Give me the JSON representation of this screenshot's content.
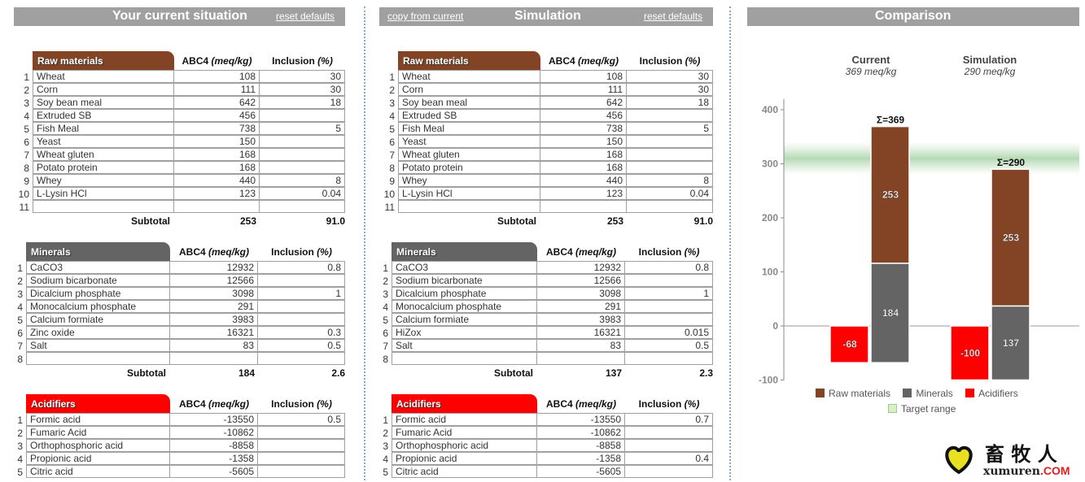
{
  "current": {
    "title": "Your current situation",
    "reset_label": "reset defaults",
    "tables": [
      {
        "key": "raw",
        "title": "Raw materials",
        "color": "#824425",
        "col_abc": "ABC4",
        "col_abc_unit": "(meq/kg)",
        "col_incl": "Inclusion",
        "col_incl_unit": "(%)",
        "rows": [
          [
            "Wheat",
            "108",
            "30"
          ],
          [
            "Corn",
            "111",
            "30"
          ],
          [
            "Soy bean meal",
            "642",
            "18"
          ],
          [
            "Extruded SB",
            "456",
            ""
          ],
          [
            "Fish Meal",
            "738",
            "5"
          ],
          [
            "Yeast",
            "150",
            ""
          ],
          [
            "Wheat gluten",
            "168",
            ""
          ],
          [
            "Potato protein",
            "168",
            ""
          ],
          [
            "Whey",
            "440",
            "8"
          ],
          [
            "L-Lysin HCl",
            "123",
            "0.04"
          ],
          [
            "",
            "",
            ""
          ]
        ],
        "subtotal_label": "Subtotal",
        "subtotal_abc": "253",
        "subtotal_incl": "91.0"
      },
      {
        "key": "minerals",
        "title": "Minerals",
        "color": "#646464",
        "col_abc": "ABC4",
        "col_abc_unit": "(meq/kg)",
        "col_incl": "Inclusion",
        "col_incl_unit": "(%)",
        "rows": [
          [
            "CaCO3",
            "12932",
            "0.8"
          ],
          [
            "Sodium bicarbonate",
            "12566",
            ""
          ],
          [
            "Dicalcium phosphate",
            "3098",
            "1"
          ],
          [
            "Monocalcium phosphate",
            "291",
            ""
          ],
          [
            "Calcium formiate",
            "3983",
            ""
          ],
          [
            "Zinc oxide",
            "16321",
            "0.3"
          ],
          [
            "Salt",
            "83",
            "0.5"
          ],
          [
            "",
            "",
            ""
          ]
        ],
        "subtotal_label": "Subtotal",
        "subtotal_abc": "184",
        "subtotal_incl": "2.6"
      },
      {
        "key": "acidifiers",
        "title": "Acidifiers",
        "color": "#ff0000",
        "col_abc": "ABC4",
        "col_abc_unit": "(meq/kg)",
        "col_incl": "Inclusion",
        "col_incl_unit": "(%)",
        "rows": [
          [
            "Formic acid",
            "-13550",
            "0.5"
          ],
          [
            "Fumaric Acid",
            "-10862",
            ""
          ],
          [
            "Orthophosphoric acid",
            "-8858",
            ""
          ],
          [
            "Propionic acid",
            "-1358",
            ""
          ],
          [
            "Citric acid",
            "-5605",
            ""
          ]
        ]
      }
    ]
  },
  "simulation": {
    "title": "Simulation",
    "copy_label": "copy from current",
    "reset_label": "reset defaults",
    "tables": [
      {
        "key": "raw",
        "title": "Raw materials",
        "color": "#824425",
        "col_abc": "ABC4",
        "col_abc_unit": "(meq/kg)",
        "col_incl": "Inclusion",
        "col_incl_unit": "(%)",
        "rows": [
          [
            "Wheat",
            "108",
            "30"
          ],
          [
            "Corn",
            "111",
            "30"
          ],
          [
            "Soy bean meal",
            "642",
            "18"
          ],
          [
            "Extruded SB",
            "456",
            ""
          ],
          [
            "Fish Meal",
            "738",
            "5"
          ],
          [
            "Yeast",
            "150",
            ""
          ],
          [
            "Wheat gluten",
            "168",
            ""
          ],
          [
            "Potato protein",
            "168",
            ""
          ],
          [
            "Whey",
            "440",
            "8"
          ],
          [
            "L-Lysin HCl",
            "123",
            "0.04"
          ],
          [
            "",
            "",
            ""
          ]
        ],
        "subtotal_label": "Subtotal",
        "subtotal_abc": "253",
        "subtotal_incl": "91.0"
      },
      {
        "key": "minerals",
        "title": "Minerals",
        "color": "#646464",
        "col_abc": "ABC4",
        "col_abc_unit": "(meq/kg)",
        "col_incl": "Inclusion",
        "col_incl_unit": "(%)",
        "rows": [
          [
            "CaCO3",
            "12932",
            "0.8"
          ],
          [
            "Sodium bicarbonate",
            "12566",
            ""
          ],
          [
            "Dicalcium phosphate",
            "3098",
            "1"
          ],
          [
            "Monocalcium phosphate",
            "291",
            ""
          ],
          [
            "Calcium formiate",
            "3983",
            ""
          ],
          [
            "HiZox",
            "16321",
            "0.015"
          ],
          [
            "Salt",
            "83",
            "0.5"
          ],
          [
            "",
            "",
            ""
          ]
        ],
        "subtotal_label": "Subtotal",
        "subtotal_abc": "137",
        "subtotal_incl": "2.3"
      },
      {
        "key": "acidifiers",
        "title": "Acidifiers",
        "color": "#ff0000",
        "col_abc": "ABC4",
        "col_abc_unit": "(meq/kg)",
        "col_incl": "Inclusion",
        "col_incl_unit": "(%)",
        "rows": [
          [
            "Formic acid",
            "-13550",
            "0.7"
          ],
          [
            "Fumaric Acid",
            "-10862",
            ""
          ],
          [
            "Orthophosphoric acid",
            "-8858",
            ""
          ],
          [
            "Propionic acid",
            "-1358",
            "0.4"
          ],
          [
            "Citric acid",
            "-5605",
            ""
          ]
        ]
      }
    ]
  },
  "comparison": {
    "title": "Comparison",
    "groups": [
      {
        "label": "Current",
        "sub": "369 meq/kg"
      },
      {
        "label": "Simulation",
        "sub": "290 meq/kg"
      }
    ]
  },
  "chart_data": {
    "type": "bar",
    "categories": [
      "Current",
      "Simulation"
    ],
    "ylim": [
      -100,
      420
    ],
    "yticks": [
      -100,
      0,
      100,
      200,
      300,
      400
    ],
    "target_range": [
      280,
      340
    ],
    "series": [
      {
        "name": "Raw materials",
        "color": "#824425",
        "values": [
          253,
          253
        ]
      },
      {
        "name": "Minerals",
        "color": "#646464",
        "values": [
          184,
          137
        ]
      },
      {
        "name": "Acidifiers",
        "color": "#ff0000",
        "values": [
          -68,
          -100
        ]
      }
    ],
    "totals": [
      "Σ=369",
      "Σ=290"
    ],
    "legend": [
      "Raw materials",
      "Minerals",
      "Acidifiers",
      "Target range"
    ],
    "target_color": "#d9efc4",
    "legend_placement": "bottom",
    "grid": false
  },
  "logo": {
    "text": "畜牧人",
    "sub": "xumuren",
    "sub_suffix": ".COM"
  }
}
